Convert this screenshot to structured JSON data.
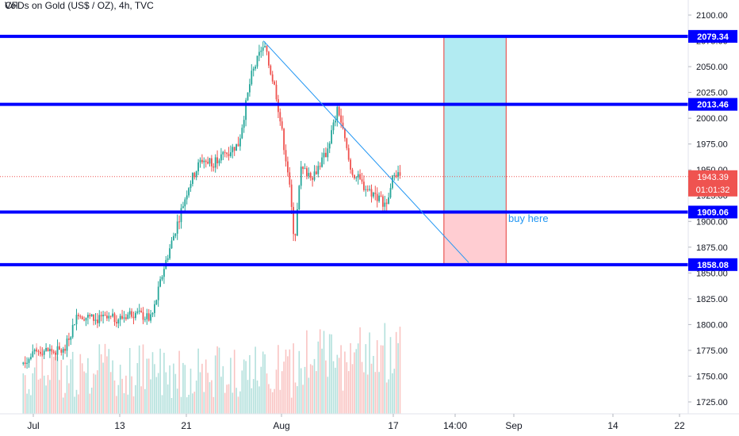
{
  "chart_data": {
    "type": "candlestick",
    "title": "CFDs on Gold (US$ / OZ), 4h, TVC",
    "volume_label": "Vol",
    "ylim": [
      1716,
      2113
    ],
    "y_ticks": [
      "2100.00",
      "2075.00",
      "2050.00",
      "2025.00",
      "2000.00",
      "1975.00",
      "1950.00",
      "1925.00",
      "1900.00",
      "1875.00",
      "1850.00",
      "1825.00",
      "1800.00",
      "1775.00",
      "1750.00",
      "1725.00"
    ],
    "x_ticks": [
      "Jul",
      "13",
      "21",
      "Aug",
      "17",
      "14:00",
      "Sep",
      "14",
      "22"
    ],
    "levels": [
      {
        "value": 2079.34,
        "label": "2079.34"
      },
      {
        "value": 2013.46,
        "label": "2013.46"
      },
      {
        "value": 1909.06,
        "label": "1909.06"
      },
      {
        "value": 1858.08,
        "label": "1858.08"
      }
    ],
    "last_price": {
      "value": 1943.39,
      "label": "1943.39",
      "countdown": "01:01:32"
    },
    "annotation": "buy here",
    "trendline": {
      "start": {
        "date": "2020-08-07",
        "price": 2075
      },
      "end": {
        "date": "2020-09-09",
        "price": 1860
      }
    },
    "long_position": {
      "entry": 1909.06,
      "target": 2079.34,
      "stop": 1858.08,
      "start_date": "2020-09-05",
      "end_date": "2020-09-15"
    },
    "anchors": [
      {
        "t": "2020-06-29",
        "p": 1760
      },
      {
        "t": "2020-07-02",
        "p": 1775
      },
      {
        "t": "2020-07-06",
        "p": 1774
      },
      {
        "t": "2020-07-08",
        "p": 1810
      },
      {
        "t": "2020-07-11",
        "p": 1805
      },
      {
        "t": "2020-07-15",
        "p": 1806
      },
      {
        "t": "2020-07-17",
        "p": 1812
      },
      {
        "t": "2020-07-20",
        "p": 1805
      },
      {
        "t": "2020-07-22",
        "p": 1855
      },
      {
        "t": "2020-07-24",
        "p": 1895
      },
      {
        "t": "2020-07-26",
        "p": 1935
      },
      {
        "t": "2020-07-28",
        "p": 1960
      },
      {
        "t": "2020-07-30",
        "p": 1958
      },
      {
        "t": "2020-08-03",
        "p": 1975
      },
      {
        "t": "2020-08-05",
        "p": 2040
      },
      {
        "t": "2020-08-07",
        "p": 2072
      },
      {
        "t": "2020-08-09",
        "p": 2025
      },
      {
        "t": "2020-08-11",
        "p": 1945
      },
      {
        "t": "2020-08-12",
        "p": 1880
      },
      {
        "t": "2020-08-13",
        "p": 1950
      },
      {
        "t": "2020-08-15",
        "p": 1945
      },
      {
        "t": "2020-08-17",
        "p": 1965
      },
      {
        "t": "2020-08-19",
        "p": 2010
      },
      {
        "t": "2020-08-21",
        "p": 1950
      },
      {
        "t": "2020-08-23",
        "p": 1935
      },
      {
        "t": "2020-08-25",
        "p": 1925
      },
      {
        "t": "2020-08-27",
        "p": 1915
      },
      {
        "t": "2020-08-28",
        "p": 1950
      },
      {
        "t": "2020-08-29",
        "p": 1943
      }
    ],
    "colors": {
      "up": "#26a69a",
      "down": "#ef5350",
      "level": "#0000ff",
      "trendline": "#2196f3",
      "target_zone": "#b2ebf2",
      "stop_zone": "#ffcdd2",
      "zone_border": "#e53935",
      "last_price": "#ef5350",
      "annotation": "#2196f3"
    }
  }
}
